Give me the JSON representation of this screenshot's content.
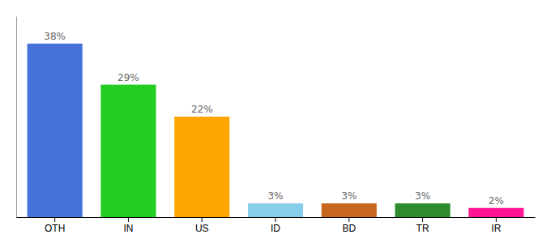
{
  "chart_data": {
    "type": "bar",
    "categories": [
      "OTH",
      "IN",
      "US",
      "ID",
      "BD",
      "TR",
      "IR"
    ],
    "values": [
      38,
      29,
      22,
      3,
      3,
      3,
      2
    ],
    "value_labels": [
      "38%",
      "29%",
      "22%",
      "3%",
      "3%",
      "3%",
      "2%"
    ],
    "colors": [
      "#4472d9",
      "#22cc22",
      "#ffa500",
      "#87ceeb",
      "#c8671e",
      "#2e8b2e",
      "#ff1493"
    ],
    "ylim": [
      0,
      44
    ],
    "data_labels": true,
    "tick_labels": "x"
  }
}
